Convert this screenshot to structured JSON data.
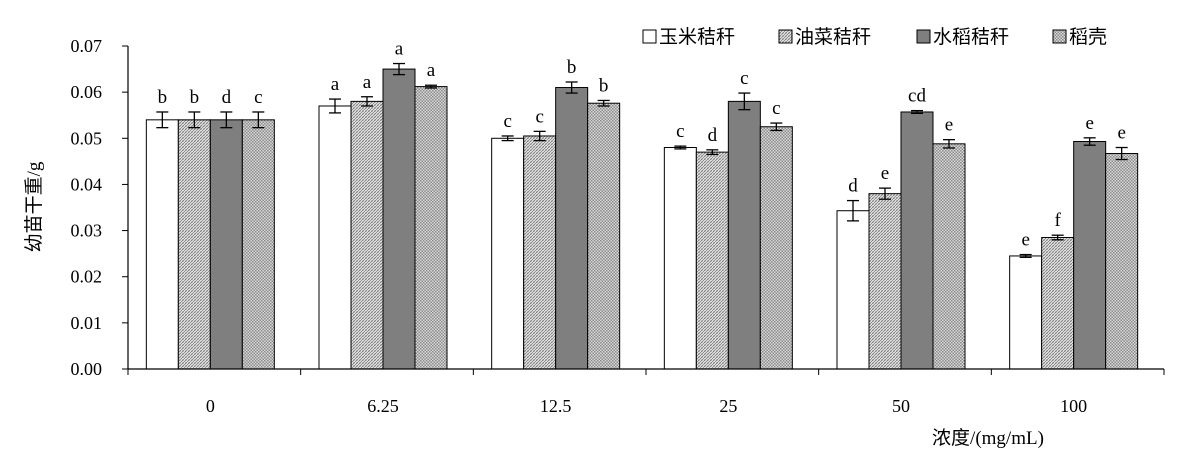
{
  "chart_data": {
    "type": "bar",
    "title": "",
    "xlabel": "浓度/(mg/mL)",
    "ylabel": "幼苗干重/g",
    "ylim": [
      0,
      0.07
    ],
    "yticks": [
      "0.00",
      "0.01",
      "0.02",
      "0.03",
      "0.04",
      "0.05",
      "0.06",
      "0.07"
    ],
    "ytick_values": [
      0,
      0.01,
      0.02,
      0.03,
      0.04,
      0.05,
      0.06,
      0.07
    ],
    "categories": [
      "0",
      "6.25",
      "12.5",
      "25",
      "50",
      "100"
    ],
    "legend_position": "top-right",
    "series": [
      {
        "name": "玉米秸秆",
        "fill": "white",
        "values": [
          0.054,
          0.057,
          0.05,
          0.048,
          0.0343,
          0.0245
        ],
        "errors": [
          0.0017,
          0.0015,
          0.0005,
          0.0003,
          0.0022,
          0.0003
        ],
        "labels": [
          "b",
          "a",
          "c",
          "c",
          "d",
          "e"
        ]
      },
      {
        "name": "油菜秸秆",
        "fill": "fine-hatch",
        "values": [
          0.054,
          0.058,
          0.0505,
          0.047,
          0.038,
          0.0285
        ],
        "errors": [
          0.0017,
          0.001,
          0.001,
          0.0005,
          0.0012,
          0.0005
        ],
        "labels": [
          "b",
          "a",
          "c",
          "d",
          "e",
          "f"
        ]
      },
      {
        "name": "水稻秸秆",
        "fill": "gray",
        "values": [
          0.054,
          0.065,
          0.061,
          0.058,
          0.0557,
          0.0493
        ],
        "errors": [
          0.0017,
          0.0012,
          0.0012,
          0.0018,
          0.0003,
          0.0008
        ],
        "labels": [
          "d",
          "a",
          "b",
          "c",
          "cd",
          "e"
        ]
      },
      {
        "name": "稻壳",
        "fill": "dots",
        "values": [
          0.054,
          0.0612,
          0.0576,
          0.0525,
          0.0488,
          0.0467
        ],
        "errors": [
          0.0017,
          0.0003,
          0.0006,
          0.0008,
          0.0009,
          0.0013
        ],
        "labels": [
          "c",
          "a",
          "b",
          "c",
          "e",
          "e"
        ]
      }
    ]
  },
  "colors": {
    "gray_bar": "#7f7f7f",
    "hatch_base": "#ffffff",
    "hatch_line": "#808080",
    "dots_base": "#ffffff",
    "dots_dot": "#666666"
  }
}
